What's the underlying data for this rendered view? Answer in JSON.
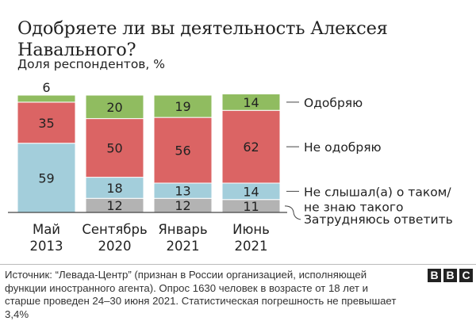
{
  "chart_data": {
    "type": "bar",
    "stacked": true,
    "title": "Одобряете ли вы деятельность Алексея Навального?",
    "subtitle": "Доля респондентов, %",
    "categories": [
      {
        "month": "Май",
        "year": "2013"
      },
      {
        "month": "Сентябрь",
        "year": "2020"
      },
      {
        "month": "Январь",
        "year": "2021"
      },
      {
        "month": "Июнь",
        "year": "2021"
      }
    ],
    "series": [
      {
        "name": "Затрудняюсь ответить",
        "color": "#b3b3b3",
        "values": [
          0,
          12,
          12,
          11
        ]
      },
      {
        "name": "Не слышал(а) о таком/ не знаю такого",
        "color": "#a3cedb",
        "values": [
          59,
          18,
          13,
          14
        ]
      },
      {
        "name": "Не одобряю",
        "color": "#db6464",
        "values": [
          35,
          50,
          56,
          62
        ]
      },
      {
        "name": "Одобряю",
        "color": "#90bc60",
        "values": [
          6,
          20,
          19,
          14
        ]
      }
    ],
    "legend_lines": [
      [
        "Одобряю"
      ],
      [
        "Не одобряю"
      ],
      [
        "Не слышал(а) о таком/",
        "не знаю такого"
      ],
      [
        "Затрудняюсь ответить"
      ]
    ],
    "ylim": [
      0,
      100
    ],
    "legend_position": "right"
  },
  "source": "Источник: “Левада-Центр” (признан в России организацией, исполняющей функции иностранного агента). Опрос 1630 человек в возрасте от 18 лет и старше проведен 24–30 июня 2021. Статистическая погрешность не превышает 3,4%",
  "logo": [
    "B",
    "B",
    "C"
  ]
}
